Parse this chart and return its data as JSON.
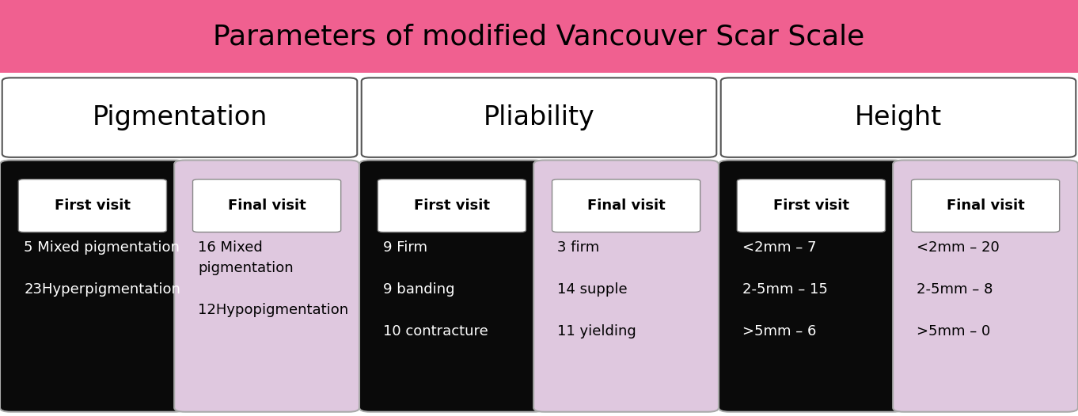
{
  "title": "Parameters of modified Vancouver Scar Scale",
  "title_bg": "#F06090",
  "title_color": "#000000",
  "title_fontsize": 26,
  "categories": [
    "Pigmentation",
    "Pliability",
    "Height"
  ],
  "category_fontsize": 24,
  "card_label_fontsize": 13,
  "card_content_fontsize": 13,
  "cards": [
    {
      "label": "First visit",
      "bg": "#0A0A0A",
      "label_bg": "#FFFFFF",
      "label_color": "#000000",
      "text_color": "#FFFFFF",
      "content": "5 Mixed pigmentation\n\n23Hyperpigmentation"
    },
    {
      "label": "Final visit",
      "bg": "#DFC8DF",
      "label_bg": "#FFFFFF",
      "label_color": "#000000",
      "text_color": "#000000",
      "content": "16 Mixed\npigmentation\n\n12Hypopigmentation"
    },
    {
      "label": "First visit",
      "bg": "#0A0A0A",
      "label_bg": "#FFFFFF",
      "label_color": "#000000",
      "text_color": "#FFFFFF",
      "content": "9 Firm\n\n9 banding\n\n10 contracture"
    },
    {
      "label": "Final visit",
      "bg": "#DFC8DF",
      "label_bg": "#FFFFFF",
      "label_color": "#000000",
      "text_color": "#000000",
      "content": "3 firm\n\n14 supple\n\n11 yielding"
    },
    {
      "label": "First visit",
      "bg": "#0A0A0A",
      "label_bg": "#FFFFFF",
      "label_color": "#000000",
      "text_color": "#FFFFFF",
      "content": "<2mm – 7\n\n2-5mm – 15\n\n>5mm – 6"
    },
    {
      "label": "Final visit",
      "bg": "#DFC8DF",
      "label_bg": "#FFFFFF",
      "label_color": "#000000",
      "text_color": "#000000",
      "content": "<2mm – 20\n\n2-5mm – 8\n\n>5mm – 0"
    }
  ]
}
